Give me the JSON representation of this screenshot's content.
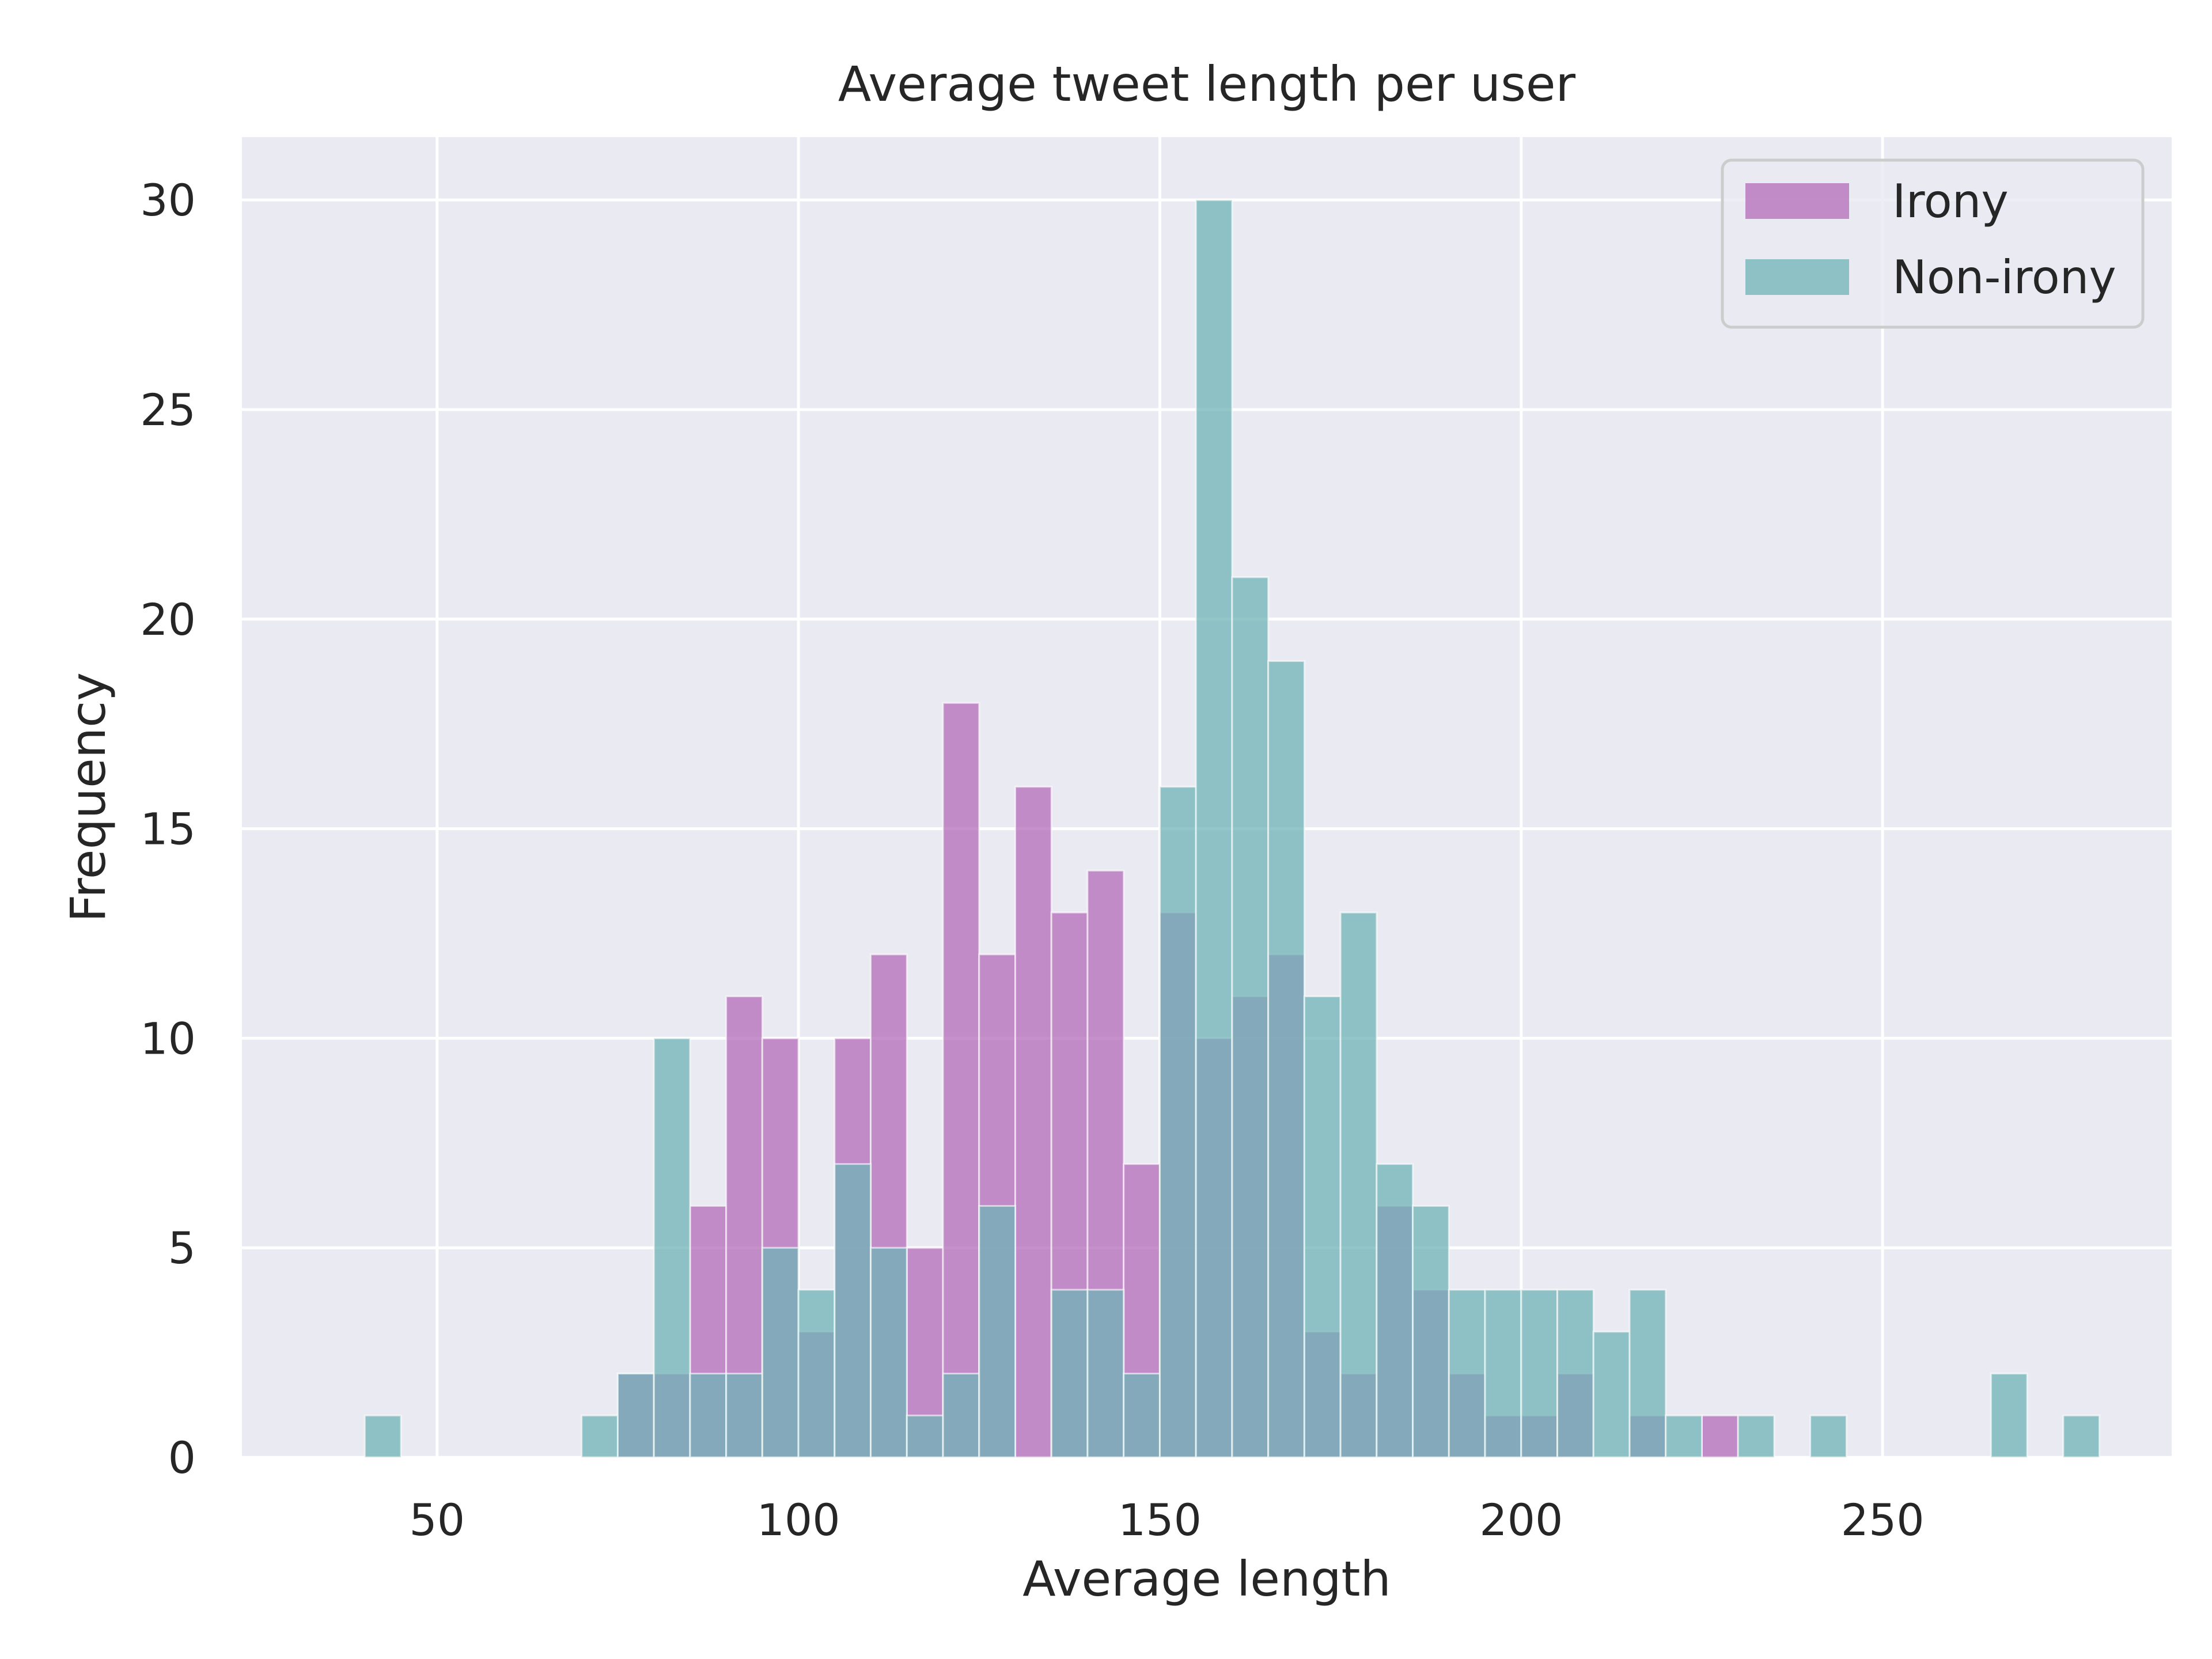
{
  "chart_data": {
    "type": "bar",
    "title": "Average tweet length per user",
    "xlabel": "Average length",
    "ylabel": "Frequency",
    "xlim": [
      23,
      290
    ],
    "ylim": [
      0,
      31.5
    ],
    "xticks": [
      50,
      100,
      150,
      200,
      250
    ],
    "yticks": [
      0,
      5,
      10,
      15,
      20,
      25,
      30
    ],
    "grid": true,
    "legend_position": "top-right",
    "bin_width": 5,
    "series": [
      {
        "name": "Irony",
        "color": "#b36bb8",
        "bins": [
          {
            "x": 75,
            "value": 2
          },
          {
            "x": 80,
            "value": 2
          },
          {
            "x": 85,
            "value": 6
          },
          {
            "x": 90,
            "value": 11
          },
          {
            "x": 95,
            "value": 10
          },
          {
            "x": 100,
            "value": 3
          },
          {
            "x": 105,
            "value": 10
          },
          {
            "x": 110,
            "value": 12
          },
          {
            "x": 115,
            "value": 5
          },
          {
            "x": 120,
            "value": 18
          },
          {
            "x": 125,
            "value": 12
          },
          {
            "x": 130,
            "value": 16
          },
          {
            "x": 135,
            "value": 13
          },
          {
            "x": 140,
            "value": 14
          },
          {
            "x": 145,
            "value": 7
          },
          {
            "x": 150,
            "value": 13
          },
          {
            "x": 155,
            "value": 10
          },
          {
            "x": 160,
            "value": 11
          },
          {
            "x": 165,
            "value": 12
          },
          {
            "x": 170,
            "value": 3
          },
          {
            "x": 175,
            "value": 2
          },
          {
            "x": 180,
            "value": 6
          },
          {
            "x": 185,
            "value": 4
          },
          {
            "x": 190,
            "value": 2
          },
          {
            "x": 195,
            "value": 1
          },
          {
            "x": 200,
            "value": 1
          },
          {
            "x": 205,
            "value": 2
          },
          {
            "x": 215,
            "value": 1
          },
          {
            "x": 225,
            "value": 1
          }
        ]
      },
      {
        "name": "Non-irony",
        "color": "#6fb3b5",
        "bins": [
          {
            "x": 40,
            "value": 1
          },
          {
            "x": 70,
            "value": 1
          },
          {
            "x": 75,
            "value": 2
          },
          {
            "x": 80,
            "value": 10
          },
          {
            "x": 85,
            "value": 2
          },
          {
            "x": 90,
            "value": 2
          },
          {
            "x": 95,
            "value": 5
          },
          {
            "x": 100,
            "value": 4
          },
          {
            "x": 105,
            "value": 7
          },
          {
            "x": 110,
            "value": 5
          },
          {
            "x": 115,
            "value": 1
          },
          {
            "x": 120,
            "value": 2
          },
          {
            "x": 125,
            "value": 6
          },
          {
            "x": 135,
            "value": 4
          },
          {
            "x": 140,
            "value": 4
          },
          {
            "x": 145,
            "value": 2
          },
          {
            "x": 150,
            "value": 16
          },
          {
            "x": 155,
            "value": 30
          },
          {
            "x": 160,
            "value": 21
          },
          {
            "x": 165,
            "value": 19
          },
          {
            "x": 170,
            "value": 11
          },
          {
            "x": 175,
            "value": 13
          },
          {
            "x": 180,
            "value": 7
          },
          {
            "x": 185,
            "value": 6
          },
          {
            "x": 190,
            "value": 4
          },
          {
            "x": 195,
            "value": 4
          },
          {
            "x": 200,
            "value": 4
          },
          {
            "x": 205,
            "value": 4
          },
          {
            "x": 210,
            "value": 3
          },
          {
            "x": 215,
            "value": 4
          },
          {
            "x": 220,
            "value": 1
          },
          {
            "x": 230,
            "value": 1
          },
          {
            "x": 240,
            "value": 1
          },
          {
            "x": 265,
            "value": 2
          },
          {
            "x": 275,
            "value": 1
          }
        ]
      }
    ]
  }
}
